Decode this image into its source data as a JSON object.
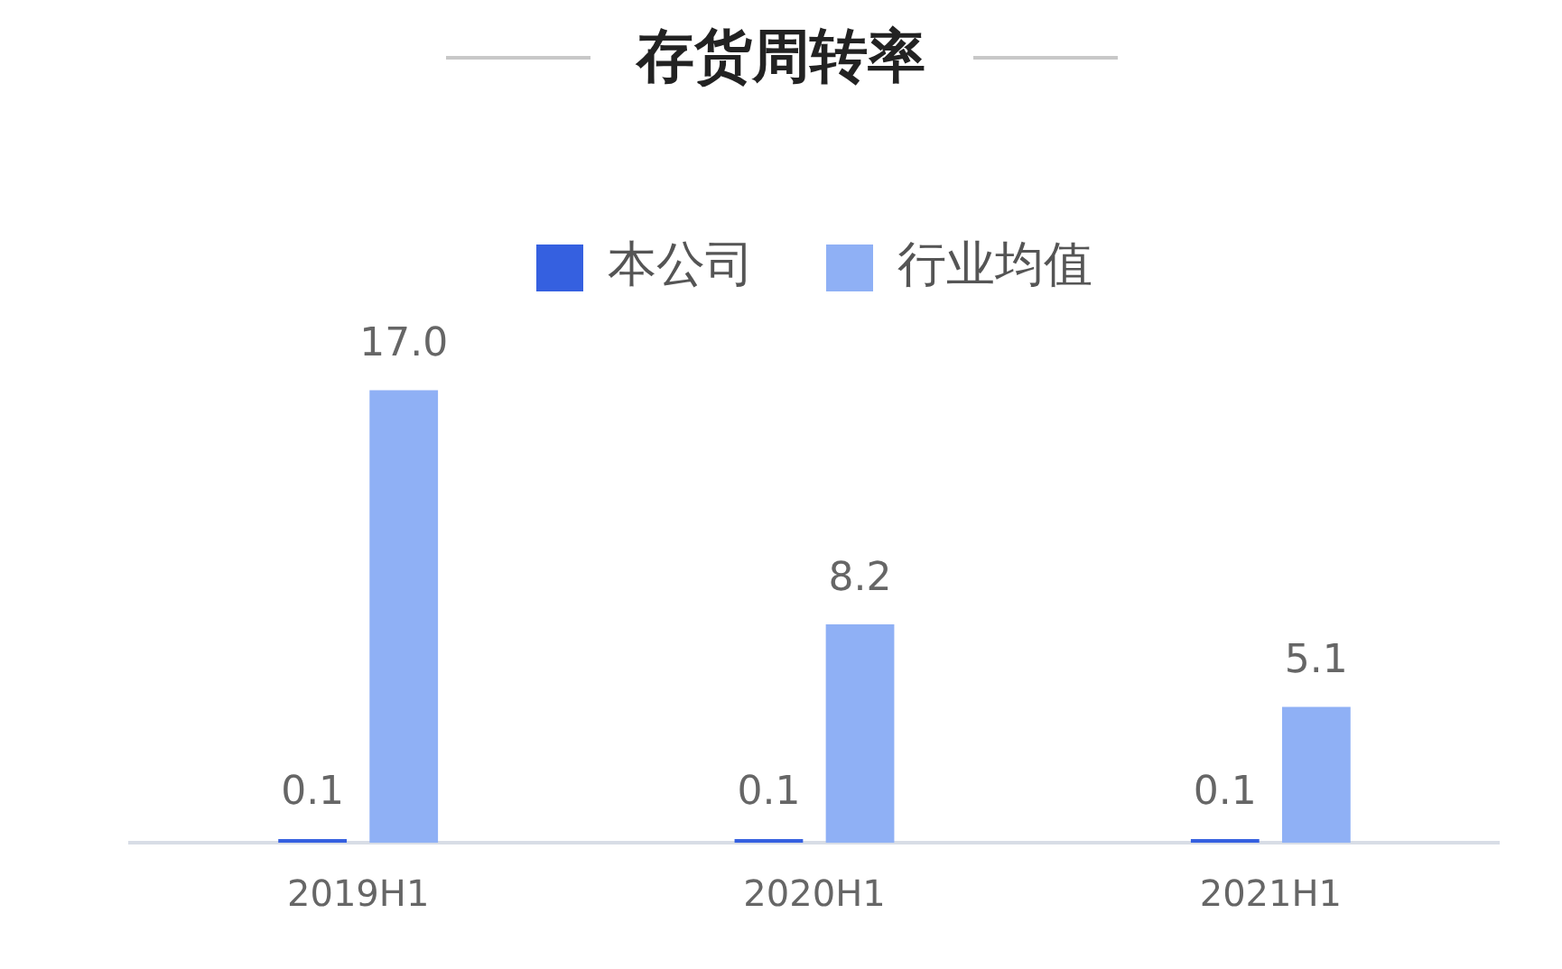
{
  "chart_data": {
    "type": "bar",
    "title": "存货周转率",
    "categories": [
      "2019H1",
      "2020H1",
      "2021H1"
    ],
    "series": [
      {
        "name": "本公司",
        "color": "#3560e0",
        "values": [
          0.1,
          0.1,
          0.1
        ],
        "value_labels": [
          "0.1",
          "0.1",
          "0.1"
        ]
      },
      {
        "name": "行业均值",
        "color": "#8fb0f5",
        "values": [
          17.0,
          8.2,
          5.1
        ],
        "value_labels": [
          "17.0",
          "8.2",
          "5.1"
        ]
      }
    ],
    "legend": "top",
    "grid": false
  }
}
